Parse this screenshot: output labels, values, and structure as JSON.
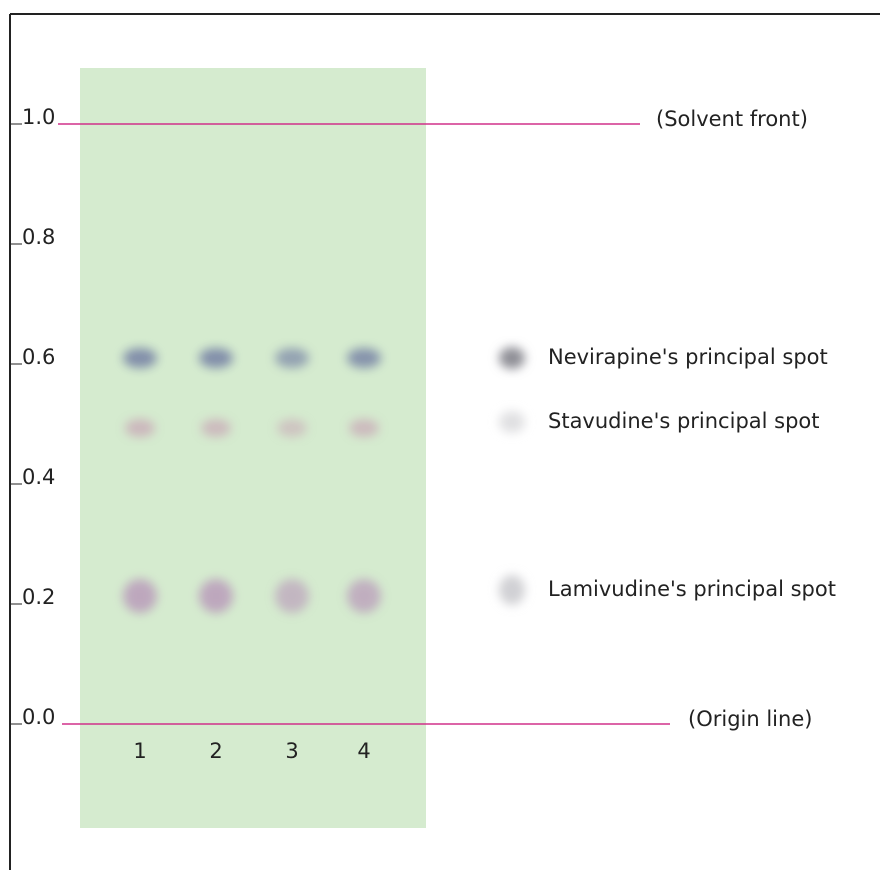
{
  "axis": {
    "ticks": [
      "1.0",
      "0.8",
      "0.6",
      "0.4",
      "0.2",
      "0.0"
    ]
  },
  "annotations": {
    "solvent_front": "(Solvent front)",
    "origin_line": "(Origin line)"
  },
  "lanes": [
    "1",
    "2",
    "3",
    "4"
  ],
  "legend": [
    "Nevirapine's principal spot",
    "Stavudine's principal spot",
    "Lamivudine's principal spot"
  ]
}
